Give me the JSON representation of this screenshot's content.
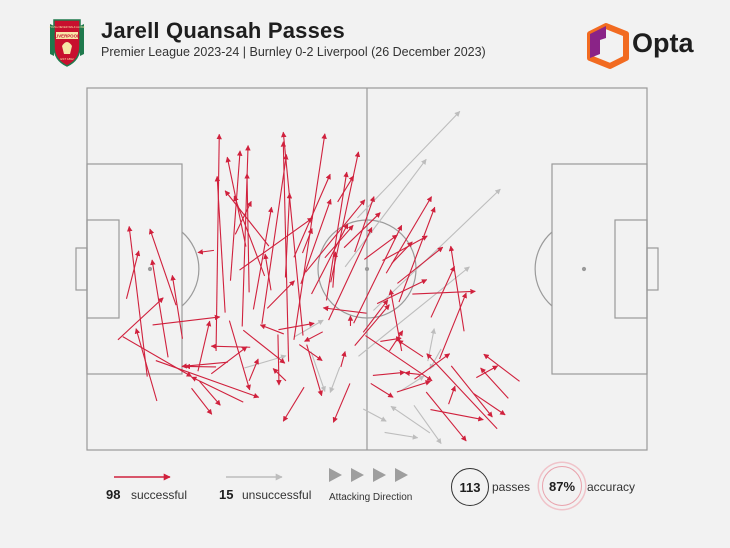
{
  "header": {
    "title": "Jarell Quansah Passes",
    "subtitle": "Premier League 2023-24 | Burnley 0-2 Liverpool (26 December 2023)",
    "crest_text": "LIVERPOOL",
    "crest_motto": "YOU'LL NEVER WALK ALONE",
    "crest_year": "EST 1892",
    "brand": "Opta"
  },
  "colors": {
    "successful": "#d0213d",
    "unsuccessful": "#bdbdbd",
    "pitch_line": "#9a9a9a",
    "accent_orange": "#f26b21",
    "accent_purple": "#8a2387"
  },
  "legend": {
    "successful_count": "98",
    "successful_label": "successful",
    "unsuccessful_count": "15",
    "unsuccessful_label": "unsuccessful",
    "direction_label": "Attacking Direction",
    "passes_value": "113",
    "passes_label": "passes",
    "accuracy_value": "87%",
    "accuracy_label": "accuracy"
  },
  "chart_data": {
    "type": "pass-map",
    "pitch_length": 105,
    "pitch_width": 68,
    "attacking_direction": "left-to-right",
    "successful": [
      [
        40.5,
        21.5,
        36.8,
        59.7
      ],
      [
        37.8,
        16.6,
        36.8,
        57.9
      ],
      [
        38.8,
        20.7,
        44.6,
        59.4
      ],
      [
        32.8,
        23.7,
        37.4,
        55.5
      ],
      [
        29.1,
        23.2,
        30.2,
        57.2
      ],
      [
        26.9,
        31.8,
        28.7,
        56.2
      ],
      [
        24.2,
        18.6,
        24.8,
        59.3
      ],
      [
        25.9,
        25.8,
        24.4,
        51.4
      ],
      [
        29.8,
        38.2,
        26.3,
        55.0
      ],
      [
        33.3,
        32.7,
        27.6,
        47.7
      ],
      [
        34.1,
        38.3,
        25.9,
        48.7
      ],
      [
        30.4,
        29.6,
        30.0,
        51.9
      ],
      [
        37.2,
        32.4,
        38.0,
        48.2
      ],
      [
        31.2,
        26.4,
        34.6,
        45.6
      ],
      [
        40.1,
        31.2,
        45.7,
        47.1
      ],
      [
        44.9,
        28.1,
        48.7,
        52.2
      ],
      [
        38.8,
        36.2,
        45.6,
        51.8
      ],
      [
        41.0,
        33.4,
        52.1,
        47.0
      ],
      [
        45.7,
        31.5,
        50.9,
        56.0
      ],
      [
        44.6,
        36.1,
        49.9,
        42.2
      ],
      [
        50.2,
        37.2,
        53.8,
        47.6
      ],
      [
        48.2,
        38.0,
        55.0,
        44.6
      ],
      [
        50.0,
        23.8,
        59.0,
        42.2
      ],
      [
        42.1,
        29.3,
        48.9,
        42.5
      ],
      [
        45.3,
        24.4,
        53.4,
        41.8
      ],
      [
        56.1,
        33.2,
        64.6,
        47.6
      ],
      [
        58.5,
        27.8,
        65.2,
        45.6
      ],
      [
        55.4,
        35.6,
        63.8,
        40.2
      ],
      [
        58.2,
        31.3,
        66.7,
        38.1
      ],
      [
        59.0,
        18.6,
        56.9,
        30.1
      ],
      [
        64.5,
        24.9,
        68.9,
        34.5
      ],
      [
        70.7,
        22.3,
        68.2,
        38.3
      ],
      [
        66.1,
        17.1,
        71.1,
        29.5
      ],
      [
        73.0,
        13.6,
        77.0,
        15.8
      ],
      [
        79.0,
        9.7,
        73.8,
        15.4
      ],
      [
        81.1,
        12.9,
        74.4,
        18.0
      ],
      [
        76.9,
        4.0,
        63.7,
        18.1
      ],
      [
        63.6,
        10.9,
        71.1,
        1.7
      ],
      [
        63.0,
        17.5,
        58.3,
        20.6
      ],
      [
        61.4,
        13.3,
        68.0,
        18.1
      ],
      [
        56.7,
        18.6,
        59.2,
        22.4
      ],
      [
        49.4,
        23.3,
        49.4,
        25.2
      ],
      [
        52.2,
        21.5,
        64.7,
        13.0
      ],
      [
        52.4,
        25.7,
        44.3,
        26.7
      ],
      [
        44.2,
        22.2,
        40.8,
        20.4
      ],
      [
        36.9,
        21.8,
        32.5,
        23.5
      ],
      [
        30.6,
        19.3,
        23.3,
        19.5
      ],
      [
        26.4,
        16.5,
        17.8,
        15.7
      ],
      [
        24.2,
        15.6,
        18.4,
        15.7
      ],
      [
        17.9,
        20.9,
        16.0,
        32.8
      ],
      [
        20.8,
        14.8,
        23.0,
        24.2
      ],
      [
        16.7,
        27.2,
        11.8,
        41.5
      ],
      [
        13.1,
        9.2,
        9.2,
        22.8
      ],
      [
        11.3,
        13.8,
        7.9,
        42.0
      ],
      [
        7.4,
        28.4,
        9.7,
        37.4
      ],
      [
        5.8,
        20.7,
        14.3,
        28.6
      ],
      [
        6.7,
        21.3,
        19.6,
        13.8
      ],
      [
        12.3,
        23.5,
        24.9,
        25.0
      ],
      [
        12.9,
        16.8,
        32.2,
        9.9
      ],
      [
        19.6,
        11.6,
        23.4,
        6.7
      ],
      [
        21.1,
        12.9,
        25.0,
        8.4
      ],
      [
        29.3,
        9.0,
        19.6,
        13.7
      ],
      [
        26.7,
        24.3,
        30.5,
        11.3
      ],
      [
        29.3,
        22.5,
        37.1,
        16.3
      ],
      [
        35.8,
        21.7,
        36.0,
        12.2
      ],
      [
        35.9,
        22.6,
        42.6,
        23.8
      ],
      [
        39.8,
        19.8,
        44.1,
        16.8
      ],
      [
        41.2,
        19.8,
        44.0,
        10.2
      ],
      [
        47.6,
        15.6,
        48.4,
        18.5
      ],
      [
        53.6,
        14.0,
        59.6,
        14.6
      ],
      [
        53.2,
        12.5,
        57.4,
        9.9
      ],
      [
        62.4,
        14.2,
        59.6,
        14.5
      ],
      [
        64.4,
        7.6,
        74.3,
        5.7
      ],
      [
        67.8,
        8.6,
        69.0,
        12.0
      ],
      [
        72.5,
        10.6,
        78.4,
        6.6
      ],
      [
        68.3,
        15.8,
        76.0,
        6.2
      ],
      [
        58.1,
        10.9,
        64.4,
        12.9
      ],
      [
        55.0,
        20.4,
        58.9,
        21.0
      ],
      [
        51.8,
        22.1,
        56.4,
        28.2
      ],
      [
        57.1,
        35.0,
        61.0,
        39.1
      ],
      [
        54.4,
        27.5,
        63.7,
        32.0
      ],
      [
        61.0,
        29.3,
        72.8,
        29.8
      ],
      [
        50.2,
        19.6,
        56.7,
        27.3
      ],
      [
        49.3,
        12.5,
        46.2,
        5.2
      ],
      [
        40.7,
        11.8,
        36.8,
        5.4
      ],
      [
        37.3,
        13.0,
        34.9,
        15.3
      ],
      [
        30.4,
        13.0,
        32.1,
        17.1
      ],
      [
        33.8,
        26.6,
        38.9,
        31.8
      ],
      [
        34.5,
        30.0,
        33.4,
        36.8
      ],
      [
        23.8,
        37.5,
        20.8,
        37.1
      ],
      [
        28.6,
        33.8,
        42.3,
        43.6
      ],
      [
        46.1,
        30.5,
        46.6,
        37.2
      ],
      [
        23.3,
        14.3,
        30.0,
        19.4
      ],
      [
        15.2,
        17.4,
        12.2,
        35.7
      ],
      [
        40.4,
        37.0,
        42.2,
        41.6
      ],
      [
        27.8,
        40.5,
        30.8,
        46.7
      ],
      [
        47.0,
        46.6,
        50.0,
        51.5
      ],
      [
        52.0,
        35.8,
        58.2,
        40.4
      ]
    ],
    "unsuccessful": [
      [
        50.9,
        17.6,
        71.7,
        34.4
      ],
      [
        53.7,
        26.2,
        77.5,
        49.0
      ],
      [
        48.4,
        34.4,
        63.6,
        54.6
      ],
      [
        50.7,
        43.6,
        69.9,
        63.6
      ],
      [
        63.9,
        16.7,
        65.1,
        22.8
      ],
      [
        58.8,
        11.1,
        63.2,
        13.9
      ],
      [
        61.3,
        8.4,
        66.4,
        1.2
      ],
      [
        66.4,
        19.0,
        64.3,
        15.2
      ],
      [
        38.8,
        21.2,
        44.3,
        24.4
      ],
      [
        29.5,
        15.4,
        37.3,
        17.7
      ],
      [
        47.4,
        15.6,
        45.6,
        10.8
      ],
      [
        51.8,
        7.7,
        56.1,
        5.4
      ],
      [
        55.8,
        3.3,
        62.0,
        2.3
      ],
      [
        64.3,
        3.2,
        57.0,
        8.2
      ],
      [
        42.0,
        18.5,
        44.6,
        11.0
      ]
    ]
  }
}
